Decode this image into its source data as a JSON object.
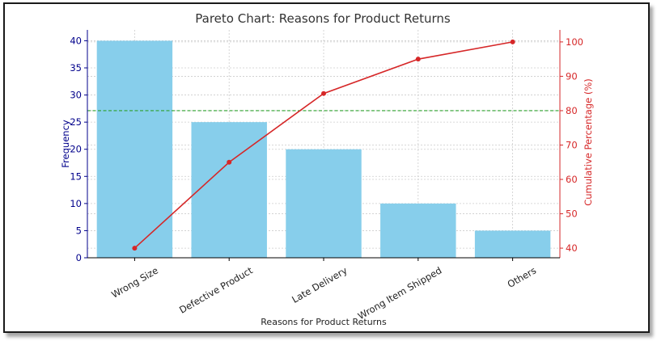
{
  "chart_data": {
    "type": "bar",
    "title": "Pareto Chart: Reasons for Product Returns",
    "xlabel": "Reasons for Product Returns",
    "ylabel": "Frequency",
    "y2label": "Cumulative Percentage (%)",
    "categories": [
      "Wrong Size",
      "Defective Product",
      "Late Delivery",
      "Wrong Item Shipped",
      "Others"
    ],
    "series": [
      {
        "type": "bar",
        "axis": "left",
        "values": [
          40,
          25,
          20,
          10,
          5
        ]
      },
      {
        "type": "line",
        "axis": "right",
        "values": [
          40,
          65,
          85,
          95,
          100
        ]
      }
    ],
    "ylim": [
      0,
      42
    ],
    "y2lim": [
      37.2,
      103.5
    ],
    "yticks": [
      0,
      5,
      10,
      15,
      20,
      25,
      30,
      35,
      40
    ],
    "y2ticks": [
      40,
      50,
      60,
      70,
      80,
      90,
      100
    ],
    "reference_line": {
      "axis": "right",
      "value": 80,
      "style": "dashed"
    },
    "grid": true,
    "colors": {
      "bar": "#87ceeb",
      "line": "#d62728",
      "left_axis": "#00008b",
      "right_axis": "#d62728",
      "reference": "#2ca02c",
      "grid": "#cccccc"
    }
  }
}
